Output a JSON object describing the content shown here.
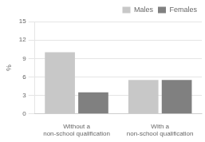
{
  "chart_data": {
    "type": "bar",
    "categories": [
      "Without a\nnon-school qualification",
      "With a\nnon-school qualification"
    ],
    "series": [
      {
        "name": "Males",
        "color": "#c8c8c8",
        "values": [
          10.0,
          5.5
        ]
      },
      {
        "name": "Females",
        "color": "#808080",
        "values": [
          3.5,
          5.5
        ]
      }
    ],
    "ylabel": "%",
    "ylim": [
      0,
      15
    ],
    "yticks": [
      0,
      3,
      6,
      9,
      12,
      15
    ],
    "grid": true,
    "legend": "upper right"
  }
}
